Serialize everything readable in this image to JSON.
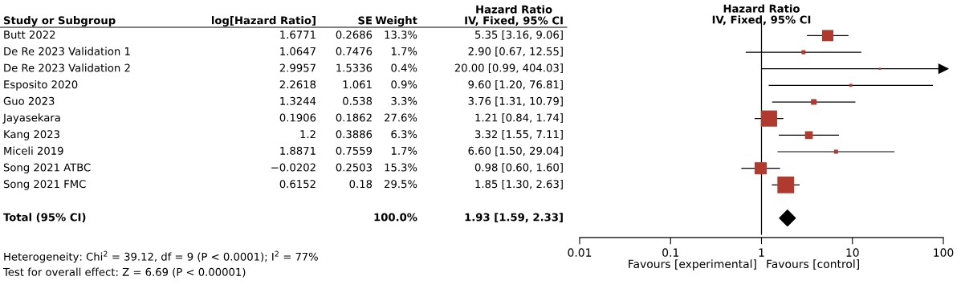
{
  "chart_data": [
    {
      "type": "other",
      "ylabel": "Study or Subgroup",
      "categories": [
        "log[Hazard Ratio]",
        "SE",
        "Weight",
        "Hazard Ratio\nIV, Fixed, 95% CI"
      ],
      "y_categories": [
        "Butt 2022",
        "De Re 2023 Validation 1",
        "De Re 2023 Validation 2",
        "Esposito 2020",
        "Guo 2023",
        "Jayasekara",
        "Kang 2023",
        "Miceli 2019",
        "Song 2021 ATBC",
        "Song 2021 FMC",
        null,
        "Total (95% CI)"
      ],
      "cell_labels": [
        [
          "1.6771",
          "0.2686",
          "13.3%",
          "5.35 [3.16, 9.06]"
        ],
        [
          "1.0647",
          "0.7476",
          "1.7%",
          "2.90 [0.67, 12.55]"
        ],
        [
          "2.9957",
          "1.5336",
          "0.4%",
          "20.00 [0.99, 404.03]"
        ],
        [
          "2.2618",
          "1.061",
          "0.9%",
          "9.60 [1.20, 76.81]"
        ],
        [
          "1.3244",
          "0.538",
          "3.3%",
          "3.76 [1.31, 10.79]"
        ],
        [
          "0.1906",
          "0.1862",
          "27.6%",
          "1.21 [0.84, 1.74]"
        ],
        [
          "1.2",
          "0.3886",
          "6.3%",
          "3.32 [1.55, 7.11]"
        ],
        [
          "1.8871",
          "0.7559",
          "1.7%",
          "6.60 [1.50, 29.04]"
        ],
        [
          "−0.0202",
          "0.2503",
          "15.3%",
          "0.98 [0.60, 1.60]"
        ],
        [
          "0.6152",
          "0.18",
          "29.5%",
          "1.85 [1.30, 2.63]"
        ],
        [
          null,
          null,
          null,
          null
        ],
        [
          null,
          null,
          "100.0%",
          "1.93 [1.59, 2.33]"
        ]
      ],
      "annotations": [
        "Heterogeneity: Chi$^{2}$ = 39.12, df = 9 (P < 0.0001); I$^{2}$ = 77%",
        "Test for overall effect: Z = 6.69 (P < 0.00001)"
      ]
    },
    {
      "type": "bubble",
      "title": "Hazard Ratio\nIV, Fixed, 95% CI",
      "orientation": "horizontal",
      "log": "x",
      "categories": [
        null,
        null,
        null,
        null,
        null,
        null,
        null,
        null,
        null,
        null,
        null,
        null
      ],
      "series": [
        {
          "color": "#b03a2e",
          "marker": "square",
          "values": [
            5.35,
            2.9,
            20.0,
            9.6,
            3.76,
            1.21,
            3.32,
            6.6,
            0.98,
            1.85,
            null,
            null
          ],
          "sizes": [
            0.45,
            0.058,
            0.014,
            0.031,
            0.112,
            0.936,
            0.214,
            0.058,
            0.519,
            1,
            null,
            null
          ],
          "errors": [
            [
              3.16,
              9.06
            ],
            [
              0.67,
              12.55
            ],
            [
              0.99,
              100
            ],
            [
              1.2,
              76.81
            ],
            [
              1.31,
              10.79
            ],
            [
              0.84,
              1.74
            ],
            [
              1.55,
              7.11
            ],
            [
              1.5,
              29.04
            ],
            [
              0.6,
              1.6
            ],
            [
              1.3,
              2.63
            ],
            null,
            null
          ]
        },
        {
          "type": "scatter",
          "color": "#000000",
          "marker": "diamond",
          "values": [
            null,
            null,
            null,
            null,
            null,
            null,
            null,
            null,
            null,
            null,
            null,
            1.93
          ]
        }
      ],
      "xlim": [
        0.01,
        100
      ],
      "xticks": [
        0.01,
        0.1,
        1,
        10,
        100
      ],
      "ref_lines": [
        {
          "axis": "x",
          "value": 1,
          "color": "#000000"
        }
      ],
      "tick_labels": "x",
      "grid": false,
      "legend": false,
      "annotations": [
        "Favours [experimental]",
        "Favours [control]"
      ]
    }
  ]
}
